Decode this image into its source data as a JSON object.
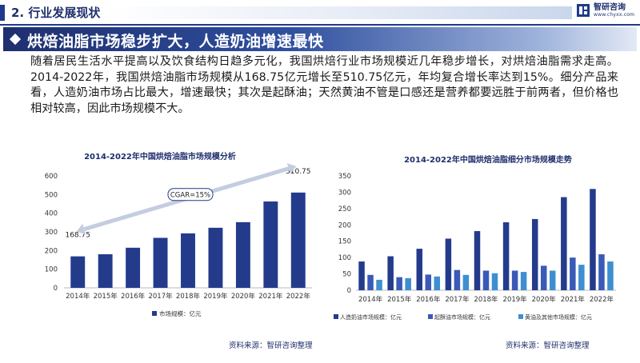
{
  "header": {
    "section_title": "2. 行业发展现状",
    "logo_name": "智研咨询",
    "logo_url": "www.chyxx.com"
  },
  "banner": {
    "title": "烘焙油脂市场稳步扩大，人造奶油增速最快"
  },
  "paragraph": "随着居民生活水平提高以及饮食结构日趋多元化，我国烘焙行业市场规模近几年稳步增长，对烘焙油脂需求走高。2014-2022年，我国烘焙油脂市场规模从168.75亿元增长至510.75亿元，年均复合增长率达到15%。细分产品来看，人造奶油市场占比最大，增速最快；其次是起酥油；天然黄油不管是口感还是营养都要远胜于前两者，但价格也相对较高，因此市场规模不大。",
  "sources": {
    "left": "资料来源：智研咨询整理",
    "right": "资料来源：智研咨询整理"
  },
  "colors": {
    "navy": "#1f3a8a",
    "bar_dark": "#243b8c",
    "bar_mid": "#3a5ab8",
    "bar_light": "#3d8fd1",
    "axis_text": "#333333"
  },
  "chart_data": [
    {
      "type": "bar",
      "title": "2014-2022年中国烘焙油脂市场规模分析",
      "categories": [
        "2014年",
        "2015年",
        "2016年",
        "2017年",
        "2018年",
        "2019年",
        "2020年",
        "2021年",
        "2022年"
      ],
      "series": [
        {
          "name": "市场规模：亿元",
          "values": [
            168.75,
            180,
            215,
            268,
            292,
            322,
            352,
            463,
            510.75
          ]
        }
      ],
      "data_labels": [
        {
          "category": "2014年",
          "text": "168.75"
        },
        {
          "category": "2022年",
          "text": "510.75"
        }
      ],
      "annotation": "CGAR=15%",
      "ylim": [
        0,
        600
      ],
      "yticks": [
        0,
        100,
        200,
        300,
        400,
        500,
        600
      ],
      "grid": false,
      "legend": "bottom"
    },
    {
      "type": "bar",
      "title": "2014-2022年中国烘焙油脂细分市场规模走势",
      "categories": [
        "2014年",
        "2015年",
        "2016年",
        "2017年",
        "2018年",
        "2019年",
        "2020年",
        "2021年",
        "2022年"
      ],
      "series": [
        {
          "name": "人造奶油市场规模：亿元",
          "values": [
            88,
            104,
            127,
            158,
            181,
            208,
            218,
            285,
            310
          ]
        },
        {
          "name": "起酥油市场规模：亿元",
          "values": [
            47,
            40,
            48,
            62,
            60,
            60,
            75,
            100,
            110
          ]
        },
        {
          "name": "黄油及其他市场规模：亿元",
          "values": [
            32,
            37,
            42,
            47,
            52,
            56,
            60,
            78,
            88
          ]
        }
      ],
      "ylim": [
        0,
        350
      ],
      "yticks": [
        0,
        50,
        100,
        150,
        200,
        250,
        300,
        350
      ],
      "grid": false,
      "legend": "bottom"
    }
  ]
}
